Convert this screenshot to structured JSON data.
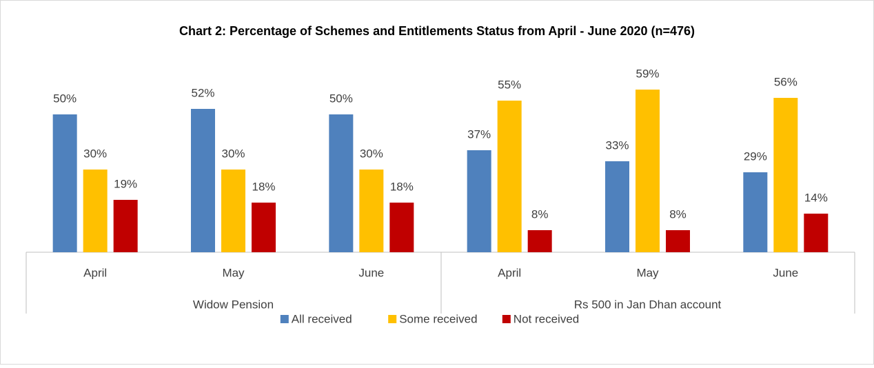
{
  "chart_data": {
    "type": "bar",
    "title": "Chart 2: Percentage of Schemes and Entitlements Status from April - June 2020 (n=476)",
    "categories": [
      "April",
      "May",
      "June",
      "April",
      "May",
      "June"
    ],
    "category_groups": [
      "Widow Pension",
      "Rs 500 in Jan Dhan account"
    ],
    "series": [
      {
        "name": "All received",
        "color": "#4f81bd",
        "values": [
          50,
          52,
          50,
          37,
          33,
          29
        ],
        "value_labels": [
          "50%",
          "52%",
          "50%",
          "37%",
          "33%",
          "29%"
        ]
      },
      {
        "name": "Some received",
        "color": "#ffc000",
        "values": [
          30,
          30,
          30,
          55,
          59,
          56
        ],
        "value_labels": [
          "30%",
          "30%",
          "30%",
          "55%",
          "59%",
          "56%"
        ]
      },
      {
        "name": "Not received",
        "color": "#c00000",
        "values": [
          19,
          18,
          18,
          8,
          8,
          14
        ],
        "value_labels": [
          "19%",
          "18%",
          "18%",
          "8%",
          "8%",
          "14%"
        ]
      }
    ],
    "legend": "bottom"
  }
}
